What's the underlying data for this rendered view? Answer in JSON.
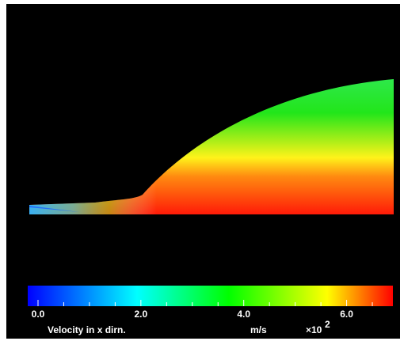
{
  "chart_data": {
    "type": "contour",
    "colorbar": {
      "label": "Velocity in x dirn.",
      "units": "m/s",
      "scale": "×10",
      "exponent": "2",
      "lim": [
        -0.2,
        6.9
      ],
      "ticks": [
        {
          "value": 0,
          "label": "0.0"
        },
        {
          "value": 2,
          "label": "2.0"
        },
        {
          "value": 4,
          "label": "4.0"
        },
        {
          "value": 6,
          "label": "6.0"
        }
      ],
      "minor_ticks": [
        0.5,
        1,
        1.5,
        2.5,
        3,
        3.5,
        4.5,
        5,
        5.5,
        6.5
      ]
    }
  }
}
